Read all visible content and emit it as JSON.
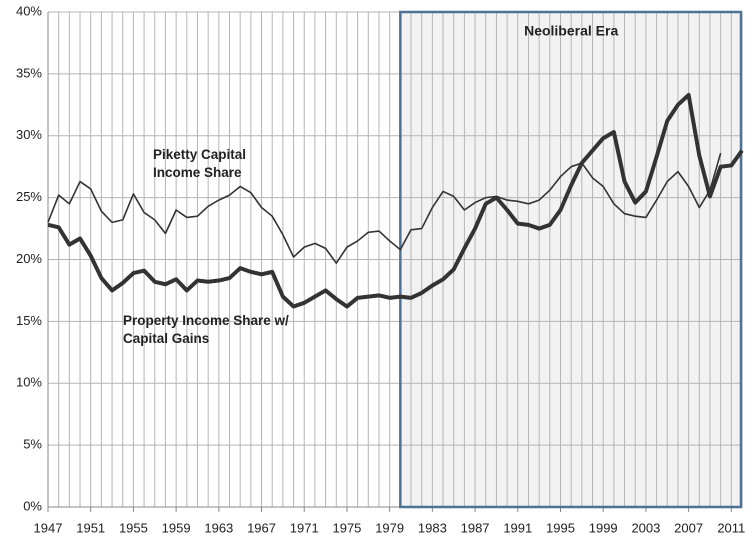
{
  "chart_data": {
    "type": "line",
    "x": [
      1947,
      1948,
      1949,
      1950,
      1951,
      1952,
      1953,
      1954,
      1955,
      1956,
      1957,
      1958,
      1959,
      1960,
      1961,
      1962,
      1963,
      1964,
      1965,
      1966,
      1967,
      1968,
      1969,
      1970,
      1971,
      1972,
      1973,
      1974,
      1975,
      1976,
      1977,
      1978,
      1979,
      1980,
      1981,
      1982,
      1983,
      1984,
      1985,
      1986,
      1987,
      1988,
      1989,
      1990,
      1991,
      1992,
      1993,
      1994,
      1995,
      1996,
      1997,
      1998,
      1999,
      2000,
      2001,
      2002,
      2003,
      2004,
      2005,
      2006,
      2007,
      2008,
      2009,
      2010,
      2011,
      2012
    ],
    "series": [
      {
        "name": "Piketty Capital Income Share",
        "color": "#333333",
        "width": 1.6,
        "values": [
          23.0,
          25.2,
          24.5,
          26.3,
          25.7,
          23.9,
          23.0,
          23.2,
          25.3,
          23.8,
          23.2,
          22.1,
          24.0,
          23.4,
          23.5,
          24.3,
          24.8,
          25.2,
          25.9,
          25.4,
          24.2,
          23.5,
          22.0,
          20.2,
          21.0,
          21.3,
          20.9,
          19.7,
          21.0,
          21.5,
          22.2,
          22.3,
          21.5,
          20.8,
          22.4,
          22.5,
          24.2,
          25.5,
          25.1,
          24.0,
          24.6,
          25.0,
          25.1,
          24.8,
          24.7,
          24.5,
          24.8,
          25.6,
          26.7,
          27.5,
          27.8,
          26.6,
          25.9,
          24.5,
          23.7,
          23.5,
          23.4,
          24.8,
          26.3,
          27.1,
          25.9,
          24.2,
          25.6,
          28.6,
          null,
          null
        ]
      },
      {
        "name": "Property Income Share w/ Capital Gains",
        "color": "#333333",
        "width": 4,
        "values": [
          22.8,
          22.6,
          21.2,
          21.7,
          20.3,
          18.5,
          17.5,
          18.1,
          18.9,
          19.1,
          18.2,
          18.0,
          18.4,
          17.5,
          18.3,
          18.2,
          18.3,
          18.5,
          19.3,
          19.0,
          18.8,
          19.0,
          17.0,
          16.2,
          16.5,
          17.0,
          17.5,
          16.8,
          16.2,
          16.9,
          17.0,
          17.1,
          16.9,
          17.0,
          16.9,
          17.3,
          17.9,
          18.4,
          19.2,
          20.9,
          22.5,
          24.5,
          25.0,
          24.0,
          22.9,
          22.8,
          22.5,
          22.8,
          24.0,
          26.0,
          27.8,
          28.8,
          29.8,
          30.3,
          26.3,
          24.6,
          25.5,
          28.3,
          31.2,
          32.5,
          33.3,
          28.4,
          25.1,
          27.5,
          27.6,
          28.8
        ]
      }
    ],
    "xlim": [
      1947,
      2012
    ],
    "xticks": [
      1947,
      1951,
      1955,
      1959,
      1963,
      1967,
      1971,
      1975,
      1979,
      1983,
      1987,
      1991,
      1995,
      1999,
      2003,
      2007,
      2011
    ],
    "ylim": [
      0,
      40
    ],
    "yticks": [
      {
        "value": 0,
        "label": "0%"
      },
      {
        "value": 5,
        "label": "5%"
      },
      {
        "value": 10,
        "label": "10%"
      },
      {
        "value": 15,
        "label": "15%"
      },
      {
        "value": 20,
        "label": "20%"
      },
      {
        "value": 25,
        "label": "25%"
      },
      {
        "value": 30,
        "label": "30%"
      },
      {
        "value": 35,
        "label": "35%"
      },
      {
        "value": 40,
        "label": "40%"
      }
    ],
    "grid": true,
    "shade": {
      "from": 1980,
      "to": 2012,
      "label": "Neoliberal Era",
      "fill": "#f2f2f2",
      "stroke": "#4f7396"
    }
  }
}
